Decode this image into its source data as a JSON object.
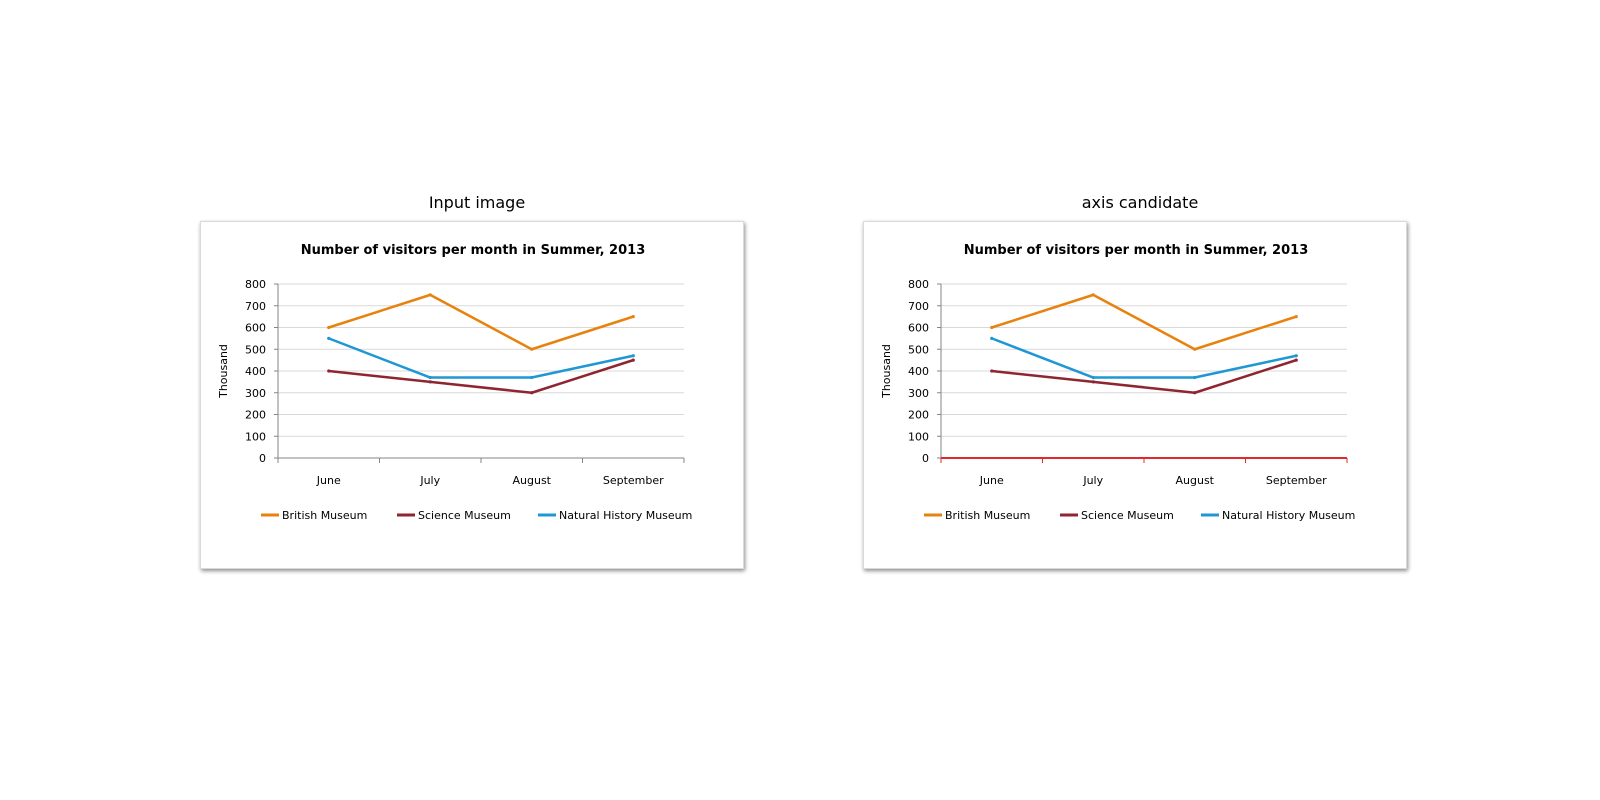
{
  "panels": [
    {
      "title": "Input image",
      "highlight_axis": false
    },
    {
      "title": "axis candidate",
      "highlight_axis": true
    }
  ],
  "highlight_color": "#e0282e",
  "chart_data": {
    "type": "line",
    "title": "Number of visitors per month in Summer, 2013",
    "xlabel": "",
    "ylabel": "Thousand",
    "categories": [
      "June",
      "July",
      "August",
      "September"
    ],
    "ylim": [
      0,
      800
    ],
    "yticks": [
      0,
      100,
      200,
      300,
      400,
      500,
      600,
      700,
      800
    ],
    "grid": true,
    "legend": "bottom",
    "series": [
      {
        "name": "British Museum",
        "color": "#e8820e",
        "values": [
          600,
          750,
          500,
          650
        ]
      },
      {
        "name": "Science Museum",
        "color": "#8e2530",
        "values": [
          400,
          350,
          300,
          450
        ]
      },
      {
        "name": "Natural History Museum",
        "color": "#1f97d4",
        "values": [
          550,
          370,
          370,
          470
        ]
      }
    ]
  }
}
